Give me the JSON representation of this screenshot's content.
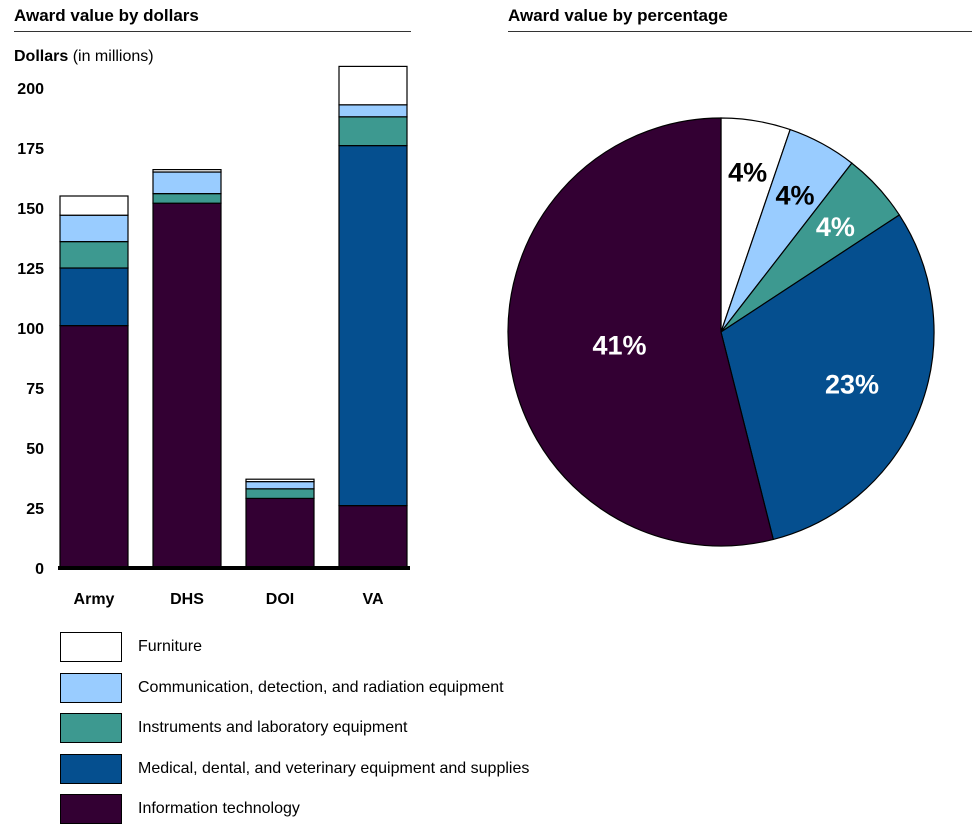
{
  "colors": {
    "furniture": "#ffffff",
    "communication": "#99ccff",
    "instruments": "#3d9990",
    "medical": "#054f8f",
    "it": "#330033"
  },
  "chart_data": [
    {
      "type": "bar",
      "stacked": true,
      "title": "Award value by dollars",
      "ylabel": "Dollars",
      "ylabel_suffix": "(in millions)",
      "ylim": [
        0,
        210
      ],
      "yticks": [
        0,
        25,
        50,
        75,
        100,
        125,
        150,
        175,
        200
      ],
      "categories": [
        "Army",
        "DHS",
        "DOI",
        "VA"
      ],
      "series": [
        {
          "name": "Information technology",
          "key": "it",
          "values": [
            101,
            152,
            29,
            26
          ]
        },
        {
          "name": "Medical, dental, and veterinary equipment and supplies",
          "key": "medical",
          "values": [
            24,
            0,
            0,
            150
          ]
        },
        {
          "name": "Instruments and laboratory equipment",
          "key": "instruments",
          "values": [
            11,
            4,
            4,
            12
          ]
        },
        {
          "name": "Communication, detection, and radiation equipment",
          "key": "communication",
          "values": [
            11,
            9,
            3,
            5
          ]
        },
        {
          "name": "Furniture",
          "key": "furniture",
          "values": [
            8,
            1,
            1,
            16
          ]
        }
      ]
    },
    {
      "type": "pie",
      "title": "Award value by percentage",
      "slices": [
        {
          "name": "Furniture",
          "key": "furniture",
          "value": 4,
          "label": "4%"
        },
        {
          "name": "Communication, detection, and radiation equipment",
          "key": "communication",
          "value": 4,
          "label": "4%"
        },
        {
          "name": "Instruments and laboratory equipment",
          "key": "instruments",
          "value": 4,
          "label": "4%"
        },
        {
          "name": "Medical, dental, and veterinary equipment and supplies",
          "key": "medical",
          "value": 23,
          "label": "23%"
        },
        {
          "name": "Information technology",
          "key": "it",
          "value": 41,
          "label": "41%"
        }
      ]
    }
  ],
  "legend": [
    {
      "key": "furniture",
      "label": "Furniture"
    },
    {
      "key": "communication",
      "label": "Communication, detection, and radiation equipment"
    },
    {
      "key": "instruments",
      "label": "Instruments and laboratory equipment"
    },
    {
      "key": "medical",
      "label": "Medical, dental, and veterinary equipment and supplies"
    },
    {
      "key": "it",
      "label": "Information technology"
    }
  ]
}
